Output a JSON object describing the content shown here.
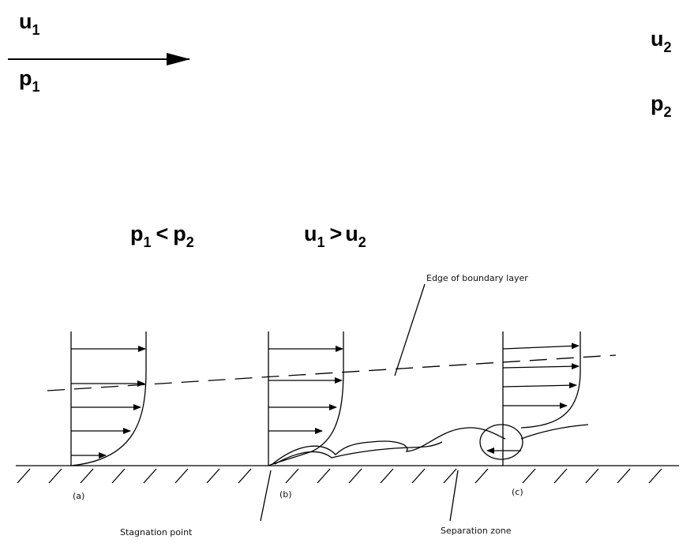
{
  "top": {
    "u1": {
      "base": "u",
      "sub": "1"
    },
    "p1": {
      "base": "p",
      "sub": "1"
    },
    "u2": {
      "base": "u",
      "sub": "2"
    },
    "p2": {
      "base": "p",
      "sub": "2"
    }
  },
  "relations": [
    {
      "left": {
        "base": "p",
        "sub": "1"
      },
      "op": "<",
      "right": {
        "base": "p",
        "sub": "2"
      }
    },
    {
      "left": {
        "base": "u",
        "sub": "1"
      },
      "op": ">",
      "right": {
        "base": "u",
        "sub": "2"
      }
    }
  ],
  "figure": {
    "edge_label": "Edge of boundary layer",
    "profiles": [
      "(a)",
      "(b)",
      "(c)"
    ],
    "stagnation_label": "Stagnation point",
    "separation_label": "Separation zone"
  }
}
